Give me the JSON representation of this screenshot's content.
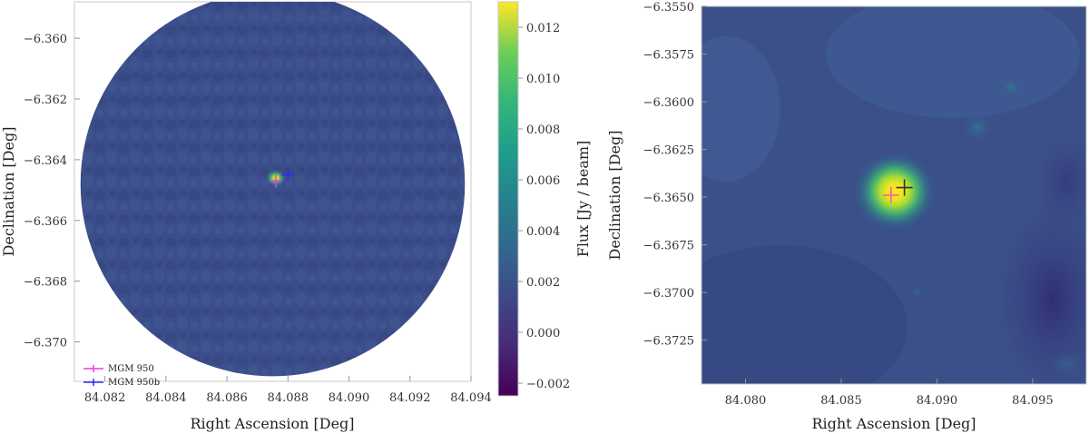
{
  "chart_data": [
    {
      "type": "heatmap",
      "title": "",
      "xlabel": "Right Ascension [Deg]",
      "ylabel": "Declination [Deg]",
      "xlim": [
        84.081,
        84.094
      ],
      "ylim": [
        -6.3713,
        -6.3588
      ],
      "xticks": [
        84.082,
        84.084,
        84.086,
        84.088,
        84.09,
        84.092,
        84.094
      ],
      "xtick_labels": [
        "84.082",
        "84.084",
        "84.086",
        "84.088",
        "84.090",
        "84.092",
        "84.094"
      ],
      "yticks": [
        -6.36,
        -6.362,
        -6.364,
        -6.366,
        -6.368,
        -6.37
      ],
      "ytick_labels": [
        "−6.360",
        "−6.362",
        "−6.364",
        "−6.366",
        "−6.368",
        "−6.370"
      ],
      "field_shape": "circle",
      "field_center": {
        "ra": 84.0875,
        "dec": -6.3648
      },
      "field_radius_deg": 0.0063,
      "source": {
        "ra": 84.0876,
        "dec": -6.3646,
        "peak_flux": 0.013
      },
      "markers": [
        {
          "name": "MGM 950",
          "ra": 84.0876,
          "dec": -6.3647,
          "color": "#e040e0"
        },
        {
          "name": "MGM 950b",
          "ra": 84.088,
          "dec": -6.3645,
          "color": "#2a2aff"
        }
      ],
      "legend_location": "lower-left",
      "colorbar": {
        "label": "Flux [Jy / beam]",
        "min": -0.0025,
        "max": 0.013,
        "ticks": [
          -0.002,
          0,
          0.002,
          0.004,
          0.006,
          0.008,
          0.01,
          0.012
        ],
        "tick_labels": [
          "−0.002",
          "0.000",
          "0.002",
          "0.004",
          "0.006",
          "0.008",
          "0.010",
          "0.012"
        ],
        "colormap": "viridis"
      }
    },
    {
      "type": "heatmap",
      "title": "",
      "xlabel": "Right Ascension [Deg]",
      "ylabel": "Declination [Deg]",
      "xlim": [
        84.0777,
        84.0978
      ],
      "ylim": [
        -6.3748,
        -6.355
      ],
      "xticks": [
        84.08,
        84.085,
        84.09,
        84.095
      ],
      "xtick_labels": [
        "84.080",
        "84.085",
        "84.090",
        "84.095"
      ],
      "yticks": [
        -6.355,
        -6.3575,
        -6.36,
        -6.3625,
        -6.365,
        -6.3675,
        -6.37,
        -6.3725
      ],
      "ytick_labels": [
        "−6.3550",
        "−6.3575",
        "−6.3600",
        "−6.3625",
        "−6.3650",
        "−6.3675",
        "−6.3700",
        "−6.3725"
      ],
      "source": {
        "ra": 84.0878,
        "dec": -6.3647
      },
      "markers": [
        {
          "name": "MGM 950",
          "ra": 84.0876,
          "dec": -6.3649,
          "color": "#ff5aa5"
        },
        {
          "name": "MGM 950b",
          "ra": 84.0883,
          "dec": -6.3645,
          "color": "#333333"
        }
      ],
      "colormap": "viridis"
    }
  ]
}
